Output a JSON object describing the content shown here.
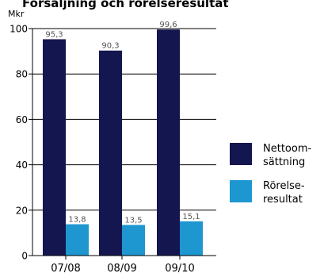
{
  "chart_data": {
    "type": "bar",
    "title": "Försäljning och rörelseresultat",
    "unit_label": "Mkr",
    "categories": [
      "07/08",
      "08/09",
      "09/10"
    ],
    "series": [
      {
        "name": "Nettoom-sättning",
        "legend_lines": [
          "Nettoom-",
          "sättning"
        ],
        "values": [
          95.3,
          90.3,
          99.6
        ],
        "labels": [
          "95,3",
          "90,3",
          "99,6"
        ],
        "color": "#141650"
      },
      {
        "name": "Rörelse-resultat",
        "legend_lines": [
          "Rörelse-",
          "resultat"
        ],
        "values": [
          13.8,
          13.5,
          15.1
        ],
        "labels": [
          "13,8",
          "13,5",
          "15,1"
        ],
        "color": "#1e96d0"
      }
    ],
    "yticks": [
      0,
      20,
      40,
      60,
      80,
      100
    ],
    "ylim": [
      0,
      100
    ],
    "grid": true,
    "legend_position": "right"
  }
}
